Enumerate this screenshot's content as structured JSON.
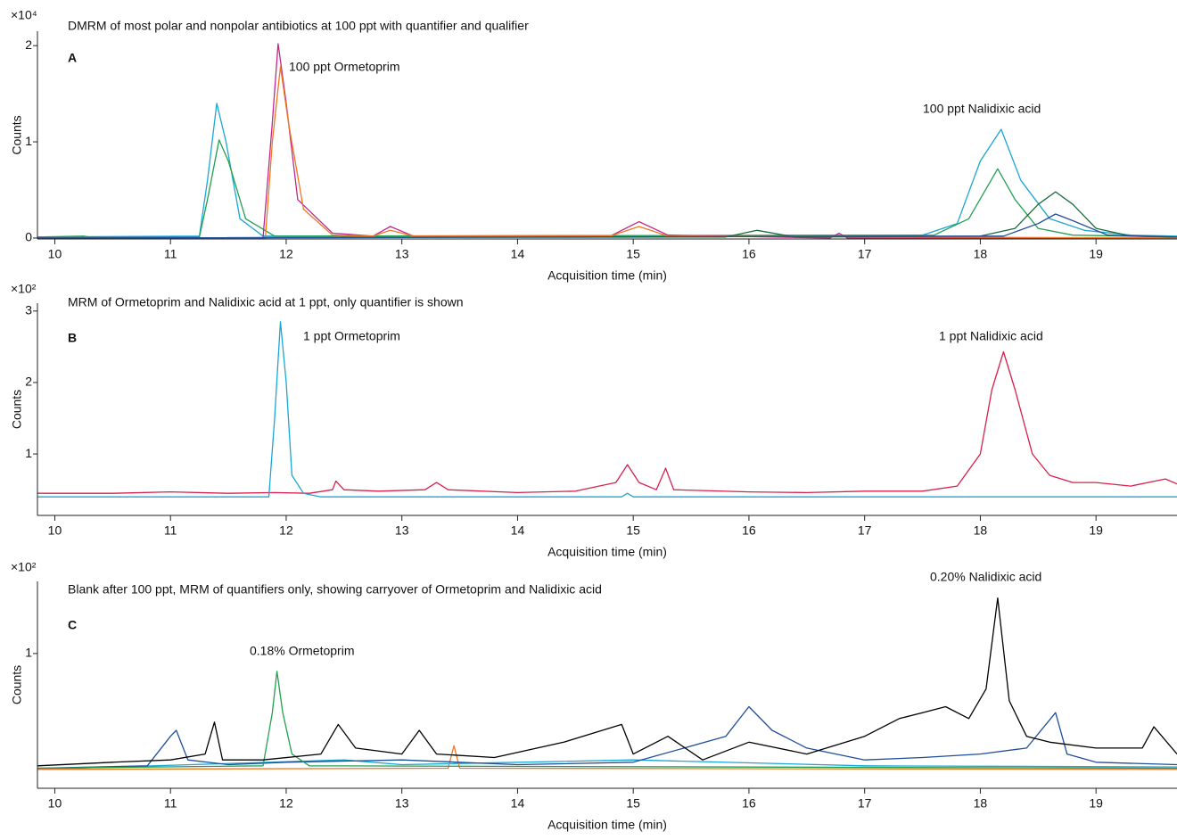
{
  "chart_data": [
    {
      "type": "line",
      "title": "DMRM of most polar and nonpolar antibiotics at 100 ppt with quantifier and qualifier",
      "panel_label": "A",
      "y_multiplier": "×10⁴",
      "y_label": "Counts",
      "x_label": "Acquisition time (min)",
      "annotations": [
        "100 ppt Ormetoprim",
        "100 ppt Nalidixic acid"
      ],
      "xlim": [
        9.85,
        19.7
      ],
      "xticks": [
        10,
        11,
        12,
        13,
        14,
        15,
        16,
        17,
        18,
        19
      ],
      "ylim": [
        -0.01,
        2.15
      ],
      "yticks": [
        0,
        1,
        2
      ],
      "series": [
        {
          "color": "#1ba6d6",
          "x": [
            9.85,
            11.25,
            11.32,
            11.4,
            11.48,
            11.6,
            11.8,
            17.5,
            17.8,
            18.0,
            18.18,
            18.35,
            18.6,
            18.9,
            19.3,
            19.7
          ],
          "values": [
            0.01,
            0.02,
            0.6,
            1.4,
            1.0,
            0.2,
            0.02,
            0.03,
            0.15,
            0.8,
            1.13,
            0.6,
            0.2,
            0.08,
            0.03,
            0.02
          ]
        },
        {
          "color": "#22a050",
          "x": [
            9.85,
            10.25,
            10.3,
            11.25,
            11.32,
            11.42,
            11.5,
            11.65,
            11.9,
            17.6,
            17.9,
            18.15,
            18.3,
            18.5,
            18.8,
            19.7
          ],
          "values": [
            0.01,
            0.02,
            0.01,
            0.01,
            0.4,
            1.02,
            0.8,
            0.2,
            0.02,
            0.03,
            0.2,
            0.72,
            0.4,
            0.1,
            0.03,
            0.01
          ]
        },
        {
          "color": "#c0288c",
          "x": [
            9.85,
            11.8,
            11.88,
            11.93,
            12.0,
            12.1,
            12.4,
            12.75,
            12.9,
            13.1,
            14.8,
            15.05,
            15.3,
            16.7,
            16.78,
            16.85,
            19.7
          ],
          "values": [
            0,
            0,
            1.2,
            2.02,
            1.4,
            0.4,
            0.05,
            0.02,
            0.12,
            0.02,
            0.02,
            0.17,
            0.03,
            0,
            0.05,
            0,
            0
          ]
        },
        {
          "color": "#f07820",
          "x": [
            9.85,
            11.82,
            11.88,
            11.95,
            12.02,
            12.15,
            12.4,
            12.75,
            12.9,
            13.1,
            14.8,
            15.05,
            15.3,
            19.7
          ],
          "values": [
            0,
            0,
            1.0,
            1.78,
            1.2,
            0.3,
            0.03,
            0.02,
            0.08,
            0.02,
            0.02,
            0.12,
            0.02,
            0
          ]
        },
        {
          "color": "#1a6b3a",
          "x": [
            9.85,
            15.8,
            16.07,
            16.4,
            18.0,
            18.3,
            18.5,
            18.65,
            18.8,
            19.0,
            19.3,
            19.7
          ],
          "values": [
            0,
            0.01,
            0.08,
            0.01,
            0.02,
            0.1,
            0.35,
            0.48,
            0.35,
            0.1,
            0.02,
            0.01
          ]
        },
        {
          "color": "#1f4e9a",
          "x": [
            9.85,
            18.2,
            18.5,
            18.65,
            18.8,
            19.1,
            19.7
          ],
          "values": [
            0,
            0.02,
            0.15,
            0.25,
            0.18,
            0.03,
            0.01
          ]
        }
      ]
    },
    {
      "type": "line",
      "title": "MRM of Ormetoprim and Nalidixic acid at 1 ppt, only quantifier is shown",
      "panel_label": "B",
      "y_multiplier": "×10²",
      "y_label": "Counts",
      "x_label": "Acquisition time (min)",
      "annotations": [
        "1 ppt Ormetoprim",
        "1 ppt Nalidixic acid"
      ],
      "xlim": [
        9.85,
        19.7
      ],
      "xticks": [
        10,
        11,
        12,
        13,
        14,
        15,
        16,
        17,
        18,
        19
      ],
      "ylim": [
        0.14,
        3.11
      ],
      "yticks": [
        1,
        2,
        3
      ],
      "series": [
        {
          "color": "#d8204c",
          "x": [
            9.85,
            10.5,
            11.0,
            11.5,
            11.9,
            12.2,
            12.4,
            12.43,
            12.5,
            12.8,
            13.2,
            13.3,
            13.4,
            14.0,
            14.5,
            14.85,
            14.95,
            15.05,
            15.2,
            15.28,
            15.35,
            16.0,
            16.5,
            17.0,
            17.5,
            17.8,
            18.0,
            18.1,
            18.2,
            18.3,
            18.45,
            18.6,
            18.8,
            19.0,
            19.3,
            19.6,
            19.7
          ],
          "values": [
            0.45,
            0.45,
            0.47,
            0.45,
            0.46,
            0.45,
            0.5,
            0.62,
            0.5,
            0.48,
            0.5,
            0.6,
            0.5,
            0.46,
            0.48,
            0.6,
            0.85,
            0.6,
            0.5,
            0.8,
            0.5,
            0.47,
            0.46,
            0.48,
            0.48,
            0.55,
            1.0,
            1.9,
            2.43,
            1.9,
            1.0,
            0.7,
            0.6,
            0.6,
            0.55,
            0.65,
            0.58
          ]
        },
        {
          "color": "#1ba6d6",
          "x": [
            9.85,
            11.85,
            11.9,
            11.95,
            12.0,
            12.05,
            12.15,
            12.3,
            14.9,
            14.95,
            15.0,
            19.7
          ],
          "values": [
            0.4,
            0.4,
            1.5,
            2.85,
            2.0,
            0.7,
            0.45,
            0.4,
            0.4,
            0.45,
            0.4,
            0.4
          ]
        }
      ]
    },
    {
      "type": "line",
      "title": "Blank after 100 ppt, MRM of quantifiers only, showing carryover of Ormetoprim and Nalidixic acid",
      "panel_label": "C",
      "y_multiplier": "×10²",
      "y_label": "Counts",
      "x_label": "Acquisition time (min)",
      "annotations": [
        "0.18% Ormetoprim",
        "0.20% Nalidixic acid"
      ],
      "xlim": [
        9.85,
        19.7
      ],
      "xticks": [
        10,
        11,
        12,
        13,
        14,
        15,
        16,
        17,
        18,
        19
      ],
      "ylim": [
        -0.14,
        1.61
      ],
      "yticks": [
        1
      ],
      "series": [
        {
          "color": "#1ba6d6",
          "x": [
            9.85,
            12.5,
            13.0,
            15.0,
            17.0,
            19.7
          ],
          "values": [
            0.02,
            0.1,
            0.06,
            0.1,
            0.05,
            0.04
          ]
        },
        {
          "color": "#f07820",
          "x": [
            9.85,
            13.4,
            13.45,
            13.5,
            19.7
          ],
          "values": [
            0.02,
            0.03,
            0.22,
            0.03,
            0.02
          ]
        },
        {
          "color": "#1f4e9a",
          "x": [
            9.85,
            10.8,
            11.0,
            11.05,
            11.15,
            11.5,
            12.0,
            13.0,
            14.0,
            15.0,
            15.8,
            16.0,
            16.2,
            16.5,
            17.0,
            17.5,
            18.0,
            18.4,
            18.65,
            18.75,
            19.0,
            19.7
          ],
          "values": [
            0.03,
            0.05,
            0.3,
            0.35,
            0.1,
            0.06,
            0.08,
            0.1,
            0.06,
            0.08,
            0.3,
            0.55,
            0.35,
            0.2,
            0.1,
            0.12,
            0.15,
            0.2,
            0.5,
            0.15,
            0.08,
            0.06
          ]
        },
        {
          "color": "#22a050",
          "x": [
            9.85,
            11.8,
            11.88,
            11.92,
            11.97,
            12.05,
            12.2,
            19.7
          ],
          "values": [
            0.03,
            0.05,
            0.5,
            0.85,
            0.5,
            0.15,
            0.05,
            0.03
          ]
        },
        {
          "color": "#000000",
          "x": [
            9.85,
            10.5,
            11.0,
            11.3,
            11.38,
            11.45,
            11.8,
            12.3,
            12.45,
            12.6,
            13.0,
            13.15,
            13.3,
            13.8,
            14.4,
            14.9,
            15.0,
            15.3,
            15.6,
            16.0,
            16.5,
            17.0,
            17.3,
            17.5,
            17.7,
            17.9,
            18.05,
            18.15,
            18.25,
            18.4,
            18.6,
            19.0,
            19.4,
            19.5,
            19.7
          ],
          "values": [
            0.05,
            0.08,
            0.1,
            0.15,
            0.42,
            0.1,
            0.1,
            0.15,
            0.4,
            0.2,
            0.15,
            0.35,
            0.15,
            0.12,
            0.25,
            0.4,
            0.15,
            0.3,
            0.1,
            0.25,
            0.15,
            0.3,
            0.45,
            0.5,
            0.55,
            0.45,
            0.7,
            1.47,
            0.6,
            0.3,
            0.25,
            0.2,
            0.2,
            0.38,
            0.15
          ]
        }
      ]
    }
  ]
}
